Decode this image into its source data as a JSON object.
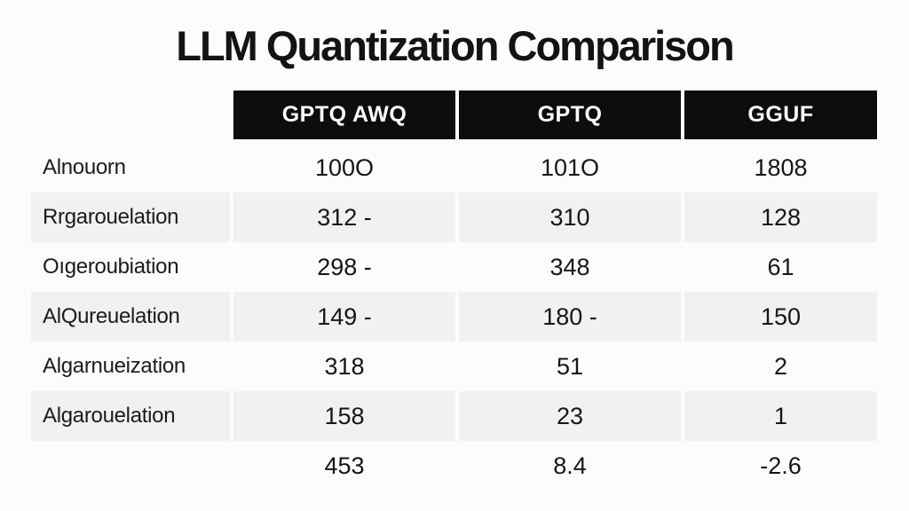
{
  "title": "LLM Quantization Comparison",
  "chart_data": {
    "type": "table",
    "title": "LLM Quantization Comparison",
    "columns": [
      "GPTQ AWQ",
      "GPTQ",
      "GGUF"
    ],
    "rows": [
      {
        "label": "Alnouorn",
        "values": [
          "100O",
          "101O",
          "1808"
        ]
      },
      {
        "label": "Rrgarouelation",
        "values": [
          "312 -",
          "310",
          "128"
        ]
      },
      {
        "label": "Oıgeroubiation",
        "values": [
          "298 -",
          "348",
          "61"
        ]
      },
      {
        "label": "AlQureuelation",
        "values": [
          "149 -",
          "180 -",
          "150"
        ]
      },
      {
        "label": "Algarnueization",
        "values": [
          "318",
          "51",
          "2"
        ]
      },
      {
        "label": "Algarouelation",
        "values": [
          "158",
          "23",
          "1"
        ]
      },
      {
        "label": "",
        "values": [
          "453",
          "8.4",
          "-2.6"
        ]
      }
    ],
    "layout": {
      "zebra_striping": true,
      "stripe_rows": [
        2,
        4,
        6
      ],
      "header_style": "black-boxes",
      "label_column_header": ""
    }
  },
  "colors": {
    "page_bg": "#fcfcfc",
    "header_bg": "#0d0d0d",
    "header_text": "#ffffff",
    "stripe": "#f0f2ef",
    "title_text": "#131313",
    "body_text": "#1b1b1b"
  }
}
